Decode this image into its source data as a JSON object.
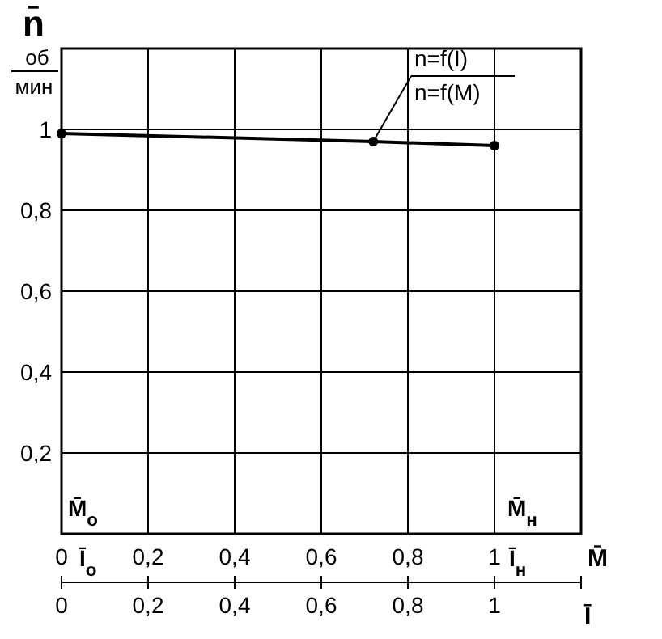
{
  "chart_data": {
    "type": "line",
    "ylabel": "n̄",
    "xlabel": "M̄",
    "x2label": "Ī",
    "x": [
      0,
      0.72,
      1
    ],
    "series": [
      {
        "color": "#000000",
        "values": [
          0.99,
          0.97,
          0.96
        ]
      }
    ],
    "xlim": [
      0,
      1.2
    ],
    "xticks": [
      0,
      {
        "value": 0.2,
        "label": "0,2"
      },
      {
        "value": 0.4,
        "label": "0,4"
      },
      {
        "value": 0.6,
        "label": "0,6"
      },
      {
        "value": 0.8,
        "label": "0,8"
      },
      1
    ],
    "x2lim": [
      0,
      1.2
    ],
    "x2ticks": [
      0,
      {
        "value": 0.2,
        "label": "0,2"
      },
      {
        "value": 0.4,
        "label": "0,4"
      },
      {
        "value": 0.6,
        "label": "0,6"
      },
      {
        "value": 0.8,
        "label": "0,8"
      },
      1,
      {
        "value": 1.2,
        "label": null
      }
    ],
    "ylim": [
      0,
      1.2
    ],
    "yticks": [
      {
        "value": 0.2,
        "label": "0,2"
      },
      {
        "value": 0.4,
        "label": "0,4"
      },
      {
        "value": 0.6,
        "label": "0,6"
      },
      {
        "value": 0.8,
        "label": "0,8"
      },
      1
    ],
    "grid": true,
    "marker": "circle",
    "line_style": "solid",
    "annotations": [
      {
        "text": "n=f(I)",
        "x": 0.72,
        "y": 0.97
      },
      {
        "text": "n=f(M)",
        "x": 0.72,
        "y": 0.97
      },
      "об",
      "мин",
      "M̄$_{o}$",
      "Ī$_{o}$",
      "M̄$_{н}$",
      "Ī$_{н}$"
    ]
  }
}
